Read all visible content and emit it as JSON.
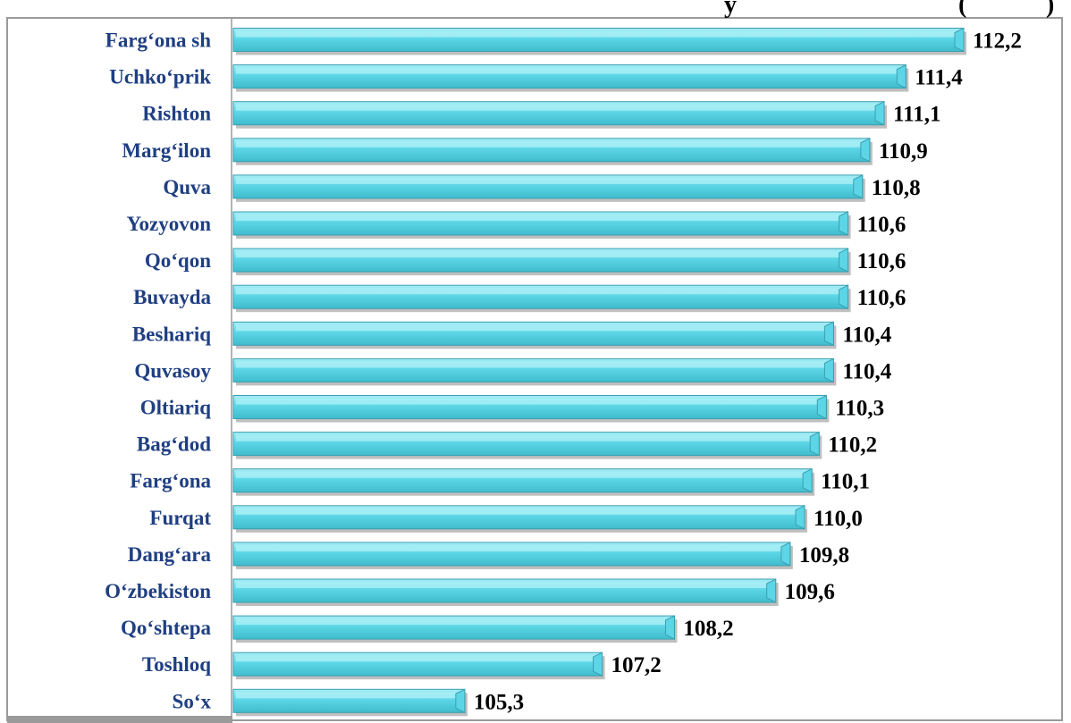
{
  "chart_data": {
    "type": "bar",
    "orientation": "horizontal",
    "title_fragment_1": "y",
    "title_fragment_2": "(",
    "title_fragment_3": ")",
    "categories": [
      "Farg‘ona sh",
      "Uchko‘prik",
      "Rishton",
      "Marg‘ilon",
      "Quva",
      "Yozyovon",
      "Qo‘qon",
      "Buvayda",
      "Beshariq",
      "Quvasoy",
      "Oltiariq",
      "Bag‘dod",
      "Farg‘ona ",
      "Furqat",
      "Dang‘ara",
      "O‘zbekiston",
      "Qo‘shtepa",
      "Toshloq",
      "So‘x"
    ],
    "value_labels": [
      "112,2",
      "111,4",
      "111,1",
      "110,9",
      "110,8",
      "110,6",
      "110,6",
      "110,6",
      "110,4",
      "110,4",
      "110,3",
      "110,2",
      "110,1",
      "110,0",
      "109,8",
      "109,6",
      "108,2",
      "107,2",
      "105,3"
    ],
    "values": [
      112.2,
      111.4,
      111.1,
      110.9,
      110.8,
      110.6,
      110.6,
      110.6,
      110.4,
      110.4,
      110.3,
      110.2,
      110.1,
      110.0,
      109.8,
      109.6,
      108.2,
      107.2,
      105.3
    ],
    "xlim": [
      102.1,
      112.2
    ],
    "grid": false,
    "legend": "none",
    "colors": {
      "bar_fill": "#5cd6e6",
      "bar_light": "#a8eef6",
      "bar_edge": "#3a9fb0",
      "bar_shadow": "#8a8a8a",
      "category_text": "#1f3f82",
      "value_text": "#000000",
      "frame": "#9a9a9a"
    }
  }
}
